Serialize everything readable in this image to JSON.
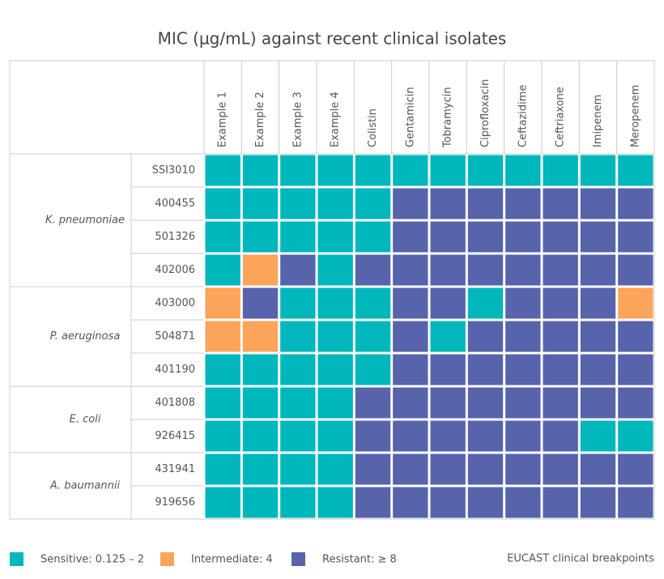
{
  "title": "MIC (µg/mL) against recent clinical isolates",
  "columns": [
    "Example 1",
    "Example 2",
    "Example 3",
    "Example 4",
    "Colistin",
    "Gentamicin",
    "Tobramycin",
    "Ciprofloxacin",
    "Ceftazidime",
    "Ceftriaxone",
    "Imipenem",
    "Meropenem"
  ],
  "legend": [
    {
      "label": "Sensitive: 0.125 – 2",
      "color": "#00b7bb"
    },
    {
      "label": "Intermediate: 4",
      "color": "#fba45a"
    },
    {
      "label": "Resistant:  ≥ 8",
      "color": "#5763ab"
    }
  ],
  "groups": [
    {
      "name": "K. pneumoniae",
      "rows": [
        {
          "id": "SSI3010",
          "cells": [
            0,
            0,
            0,
            0,
            0,
            0,
            0,
            0,
            0,
            0,
            0,
            0
          ]
        },
        {
          "id": "400455",
          "cells": [
            0,
            0,
            0,
            0,
            0,
            2,
            2,
            2,
            2,
            2,
            2,
            2
          ]
        },
        {
          "id": "501326",
          "cells": [
            0,
            0,
            0,
            0,
            0,
            2,
            2,
            2,
            2,
            2,
            2,
            2
          ]
        },
        {
          "id": "402006",
          "cells": [
            0,
            1,
            2,
            0,
            2,
            2,
            2,
            2,
            2,
            2,
            2,
            2
          ]
        }
      ]
    },
    {
      "name": "P. aeruginosa",
      "rows": [
        {
          "id": "403000",
          "cells": [
            1,
            2,
            0,
            0,
            0,
            2,
            2,
            0,
            2,
            2,
            2,
            1
          ]
        },
        {
          "id": "504871",
          "cells": [
            1,
            1,
            0,
            0,
            0,
            2,
            0,
            2,
            2,
            2,
            2,
            2
          ]
        },
        {
          "id": "401190",
          "cells": [
            0,
            0,
            0,
            0,
            0,
            2,
            2,
            2,
            2,
            2,
            2,
            2
          ]
        }
      ]
    },
    {
      "name": "E. coli",
      "rows": [
        {
          "id": "401808",
          "cells": [
            0,
            0,
            0,
            0,
            2,
            2,
            2,
            2,
            2,
            2,
            2,
            2
          ]
        },
        {
          "id": "926415",
          "cells": [
            0,
            0,
            0,
            0,
            2,
            2,
            2,
            2,
            2,
            2,
            0,
            0
          ]
        }
      ]
    },
    {
      "name": "A. baumannii",
      "rows": [
        {
          "id": "431941",
          "cells": [
            0,
            0,
            0,
            0,
            2,
            2,
            2,
            2,
            2,
            2,
            2,
            2
          ]
        },
        {
          "id": "919656",
          "cells": [
            0,
            0,
            0,
            0,
            2,
            2,
            2,
            2,
            2,
            2,
            2,
            2
          ]
        }
      ]
    }
  ],
  "note": "EUCAST clinical breakpoints"
}
